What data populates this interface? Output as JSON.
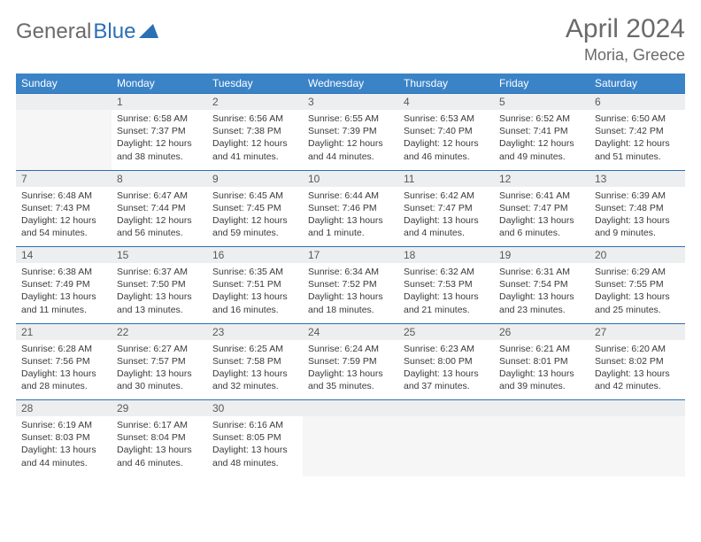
{
  "logo": {
    "general": "General",
    "blue": "Blue"
  },
  "title": "April 2024",
  "location": "Moria, Greece",
  "colors": {
    "header_bg": "#3b83c7",
    "header_fg": "#ffffff",
    "daynum_bg": "#eceeef",
    "border": "#2b6fb5",
    "logo_gray": "#6a6a6a",
    "logo_blue": "#2b6fb5",
    "text": "#3a3a3a"
  },
  "weekdays": [
    "Sunday",
    "Monday",
    "Tuesday",
    "Wednesday",
    "Thursday",
    "Friday",
    "Saturday"
  ],
  "weeks": [
    [
      null,
      {
        "n": "1",
        "sr": "Sunrise: 6:58 AM",
        "ss": "Sunset: 7:37 PM",
        "dl": "Daylight: 12 hours and 38 minutes."
      },
      {
        "n": "2",
        "sr": "Sunrise: 6:56 AM",
        "ss": "Sunset: 7:38 PM",
        "dl": "Daylight: 12 hours and 41 minutes."
      },
      {
        "n": "3",
        "sr": "Sunrise: 6:55 AM",
        "ss": "Sunset: 7:39 PM",
        "dl": "Daylight: 12 hours and 44 minutes."
      },
      {
        "n": "4",
        "sr": "Sunrise: 6:53 AM",
        "ss": "Sunset: 7:40 PM",
        "dl": "Daylight: 12 hours and 46 minutes."
      },
      {
        "n": "5",
        "sr": "Sunrise: 6:52 AM",
        "ss": "Sunset: 7:41 PM",
        "dl": "Daylight: 12 hours and 49 minutes."
      },
      {
        "n": "6",
        "sr": "Sunrise: 6:50 AM",
        "ss": "Sunset: 7:42 PM",
        "dl": "Daylight: 12 hours and 51 minutes."
      }
    ],
    [
      {
        "n": "7",
        "sr": "Sunrise: 6:48 AM",
        "ss": "Sunset: 7:43 PM",
        "dl": "Daylight: 12 hours and 54 minutes."
      },
      {
        "n": "8",
        "sr": "Sunrise: 6:47 AM",
        "ss": "Sunset: 7:44 PM",
        "dl": "Daylight: 12 hours and 56 minutes."
      },
      {
        "n": "9",
        "sr": "Sunrise: 6:45 AM",
        "ss": "Sunset: 7:45 PM",
        "dl": "Daylight: 12 hours and 59 minutes."
      },
      {
        "n": "10",
        "sr": "Sunrise: 6:44 AM",
        "ss": "Sunset: 7:46 PM",
        "dl": "Daylight: 13 hours and 1 minute."
      },
      {
        "n": "11",
        "sr": "Sunrise: 6:42 AM",
        "ss": "Sunset: 7:47 PM",
        "dl": "Daylight: 13 hours and 4 minutes."
      },
      {
        "n": "12",
        "sr": "Sunrise: 6:41 AM",
        "ss": "Sunset: 7:47 PM",
        "dl": "Daylight: 13 hours and 6 minutes."
      },
      {
        "n": "13",
        "sr": "Sunrise: 6:39 AM",
        "ss": "Sunset: 7:48 PM",
        "dl": "Daylight: 13 hours and 9 minutes."
      }
    ],
    [
      {
        "n": "14",
        "sr": "Sunrise: 6:38 AM",
        "ss": "Sunset: 7:49 PM",
        "dl": "Daylight: 13 hours and 11 minutes."
      },
      {
        "n": "15",
        "sr": "Sunrise: 6:37 AM",
        "ss": "Sunset: 7:50 PM",
        "dl": "Daylight: 13 hours and 13 minutes."
      },
      {
        "n": "16",
        "sr": "Sunrise: 6:35 AM",
        "ss": "Sunset: 7:51 PM",
        "dl": "Daylight: 13 hours and 16 minutes."
      },
      {
        "n": "17",
        "sr": "Sunrise: 6:34 AM",
        "ss": "Sunset: 7:52 PM",
        "dl": "Daylight: 13 hours and 18 minutes."
      },
      {
        "n": "18",
        "sr": "Sunrise: 6:32 AM",
        "ss": "Sunset: 7:53 PM",
        "dl": "Daylight: 13 hours and 21 minutes."
      },
      {
        "n": "19",
        "sr": "Sunrise: 6:31 AM",
        "ss": "Sunset: 7:54 PM",
        "dl": "Daylight: 13 hours and 23 minutes."
      },
      {
        "n": "20",
        "sr": "Sunrise: 6:29 AM",
        "ss": "Sunset: 7:55 PM",
        "dl": "Daylight: 13 hours and 25 minutes."
      }
    ],
    [
      {
        "n": "21",
        "sr": "Sunrise: 6:28 AM",
        "ss": "Sunset: 7:56 PM",
        "dl": "Daylight: 13 hours and 28 minutes."
      },
      {
        "n": "22",
        "sr": "Sunrise: 6:27 AM",
        "ss": "Sunset: 7:57 PM",
        "dl": "Daylight: 13 hours and 30 minutes."
      },
      {
        "n": "23",
        "sr": "Sunrise: 6:25 AM",
        "ss": "Sunset: 7:58 PM",
        "dl": "Daylight: 13 hours and 32 minutes."
      },
      {
        "n": "24",
        "sr": "Sunrise: 6:24 AM",
        "ss": "Sunset: 7:59 PM",
        "dl": "Daylight: 13 hours and 35 minutes."
      },
      {
        "n": "25",
        "sr": "Sunrise: 6:23 AM",
        "ss": "Sunset: 8:00 PM",
        "dl": "Daylight: 13 hours and 37 minutes."
      },
      {
        "n": "26",
        "sr": "Sunrise: 6:21 AM",
        "ss": "Sunset: 8:01 PM",
        "dl": "Daylight: 13 hours and 39 minutes."
      },
      {
        "n": "27",
        "sr": "Sunrise: 6:20 AM",
        "ss": "Sunset: 8:02 PM",
        "dl": "Daylight: 13 hours and 42 minutes."
      }
    ],
    [
      {
        "n": "28",
        "sr": "Sunrise: 6:19 AM",
        "ss": "Sunset: 8:03 PM",
        "dl": "Daylight: 13 hours and 44 minutes."
      },
      {
        "n": "29",
        "sr": "Sunrise: 6:17 AM",
        "ss": "Sunset: 8:04 PM",
        "dl": "Daylight: 13 hours and 46 minutes."
      },
      {
        "n": "30",
        "sr": "Sunrise: 6:16 AM",
        "ss": "Sunset: 8:05 PM",
        "dl": "Daylight: 13 hours and 48 minutes."
      },
      null,
      null,
      null,
      null
    ]
  ]
}
